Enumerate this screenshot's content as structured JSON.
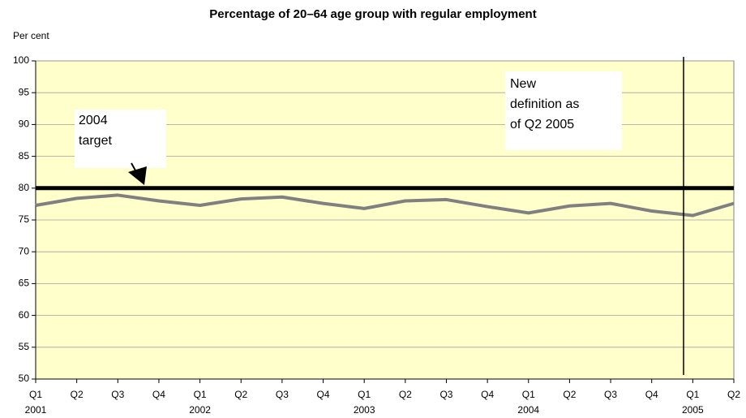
{
  "chart_data": {
    "type": "line",
    "title": "Percentage of 20–64 age group with regular employment",
    "y_axis_label": "Per cent",
    "categories": [
      "Q1",
      "Q2",
      "Q3",
      "Q4",
      "Q1",
      "Q2",
      "Q3",
      "Q4",
      "Q1",
      "Q2",
      "Q3",
      "Q4",
      "Q1",
      "Q2",
      "Q3",
      "Q4",
      "Q1",
      "Q2"
    ],
    "category_groups": [
      "2001",
      null,
      null,
      null,
      "2002",
      null,
      null,
      null,
      "2003",
      null,
      null,
      null,
      "2004",
      null,
      null,
      null,
      "2005",
      null
    ],
    "series": [
      {
        "color": "#808080",
        "values": [
          77.3,
          78.4,
          78.9,
          78.0,
          77.3,
          78.3,
          78.6,
          77.6,
          76.8,
          78.0,
          78.2,
          77.1,
          76.1,
          77.2,
          77.6,
          76.4,
          75.7,
          77.6
        ]
      }
    ],
    "target_line": {
      "value": 80,
      "color": "#000000"
    },
    "annotations": [
      {
        "lines": [
          "2004",
          "target"
        ]
      },
      {
        "lines": [
          "New",
          "definition as",
          "of Q2 2005"
        ]
      }
    ],
    "ylim": [
      50,
      100
    ],
    "yticks": [
      50,
      55,
      60,
      65,
      70,
      75,
      80,
      85,
      90,
      95,
      100
    ],
    "grid": true,
    "background": "#ffffcc"
  }
}
